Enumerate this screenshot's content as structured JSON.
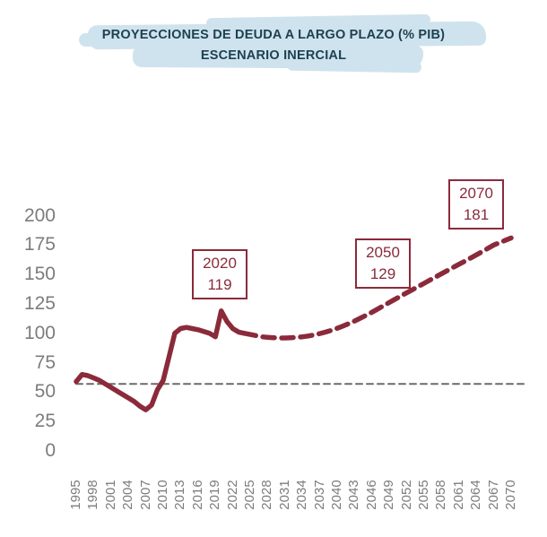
{
  "chart_data": {
    "type": "line",
    "title": "PROYECCIONES DE DEUDA  A LARGO PLAZO (% PIB)",
    "subtitle": "ESCENARIO INERCIAL",
    "xlabel": "",
    "ylabel": "",
    "xlim": [
      1995,
      2070
    ],
    "ylim": [
      0,
      200
    ],
    "grid": false,
    "legend": "none",
    "y_ticks": [
      200,
      175,
      150,
      125,
      100,
      75,
      50,
      25,
      0
    ],
    "x_tick_years": [
      1995,
      1998,
      2001,
      2004,
      2007,
      2010,
      2013,
      2016,
      2019,
      2022,
      2025,
      2028,
      2031,
      2034,
      2037,
      2040,
      2043,
      2046,
      2049,
      2052,
      2055,
      2058,
      2061,
      2064,
      2067,
      2070
    ],
    "reference_line": {
      "value": 57,
      "style": "dashed"
    },
    "series": [
      {
        "name": "deuda-historica",
        "style": "solid",
        "points": [
          [
            1995,
            59
          ],
          [
            1996,
            65
          ],
          [
            1997,
            64
          ],
          [
            1998,
            62
          ],
          [
            1999,
            60
          ],
          [
            2000,
            57
          ],
          [
            2001,
            54
          ],
          [
            2002,
            51
          ],
          [
            2003,
            48
          ],
          [
            2004,
            45
          ],
          [
            2005,
            42
          ],
          [
            2006,
            38
          ],
          [
            2007,
            35
          ],
          [
            2008,
            39
          ],
          [
            2009,
            52
          ],
          [
            2010,
            60
          ],
          [
            2011,
            80
          ],
          [
            2012,
            100
          ],
          [
            2013,
            104
          ],
          [
            2014,
            105
          ],
          [
            2015,
            104
          ],
          [
            2016,
            103
          ],
          [
            2017,
            101.5
          ],
          [
            2018,
            100
          ],
          [
            2019,
            97
          ],
          [
            2020,
            119
          ],
          [
            2021,
            110
          ],
          [
            2022,
            104
          ],
          [
            2023,
            101
          ],
          [
            2024,
            100
          ]
        ]
      },
      {
        "name": "proyeccion-inercial",
        "style": "dashed",
        "points": [
          [
            2024,
            100
          ],
          [
            2025,
            99
          ],
          [
            2026,
            98
          ],
          [
            2027,
            97
          ],
          [
            2028,
            96.5
          ],
          [
            2029,
            96.2
          ],
          [
            2030,
            96
          ],
          [
            2031,
            96
          ],
          [
            2032,
            96.2
          ],
          [
            2033,
            96.5
          ],
          [
            2034,
            97
          ],
          [
            2035,
            97.7
          ],
          [
            2036,
            98.6
          ],
          [
            2037,
            99.7
          ],
          [
            2038,
            101
          ],
          [
            2039,
            102.5
          ],
          [
            2040,
            104.2
          ],
          [
            2041,
            106.1
          ],
          [
            2042,
            108.2
          ],
          [
            2043,
            110.4
          ],
          [
            2044,
            112.8
          ],
          [
            2045,
            115.3
          ],
          [
            2046,
            117.9
          ],
          [
            2047,
            120.6
          ],
          [
            2048,
            123.4
          ],
          [
            2049,
            126.2
          ],
          [
            2050,
            129
          ],
          [
            2051,
            131.7
          ],
          [
            2052,
            134.4
          ],
          [
            2053,
            137.1
          ],
          [
            2054,
            139.8
          ],
          [
            2055,
            142.5
          ],
          [
            2056,
            145.2
          ],
          [
            2057,
            147.9
          ],
          [
            2058,
            150.6
          ],
          [
            2059,
            153.3
          ],
          [
            2060,
            156
          ],
          [
            2061,
            158.6
          ],
          [
            2062,
            161.2
          ],
          [
            2063,
            163.9
          ],
          [
            2064,
            166.6
          ],
          [
            2065,
            169.4
          ],
          [
            2066,
            172.2
          ],
          [
            2067,
            175
          ],
          [
            2068,
            177
          ],
          [
            2069,
            179
          ],
          [
            2070,
            181
          ]
        ]
      }
    ],
    "annotations": [
      {
        "year": 2020,
        "value": 119
      },
      {
        "year": 2050,
        "value": 129
      },
      {
        "year": 2070,
        "value": 181
      }
    ],
    "colors": {
      "line": "#8b2a3a",
      "reference_line": "#6a6a6a",
      "axis_text": "#7c7c7c",
      "title_text": "#1d4152",
      "title_highlight": "#cfe3ee"
    }
  }
}
